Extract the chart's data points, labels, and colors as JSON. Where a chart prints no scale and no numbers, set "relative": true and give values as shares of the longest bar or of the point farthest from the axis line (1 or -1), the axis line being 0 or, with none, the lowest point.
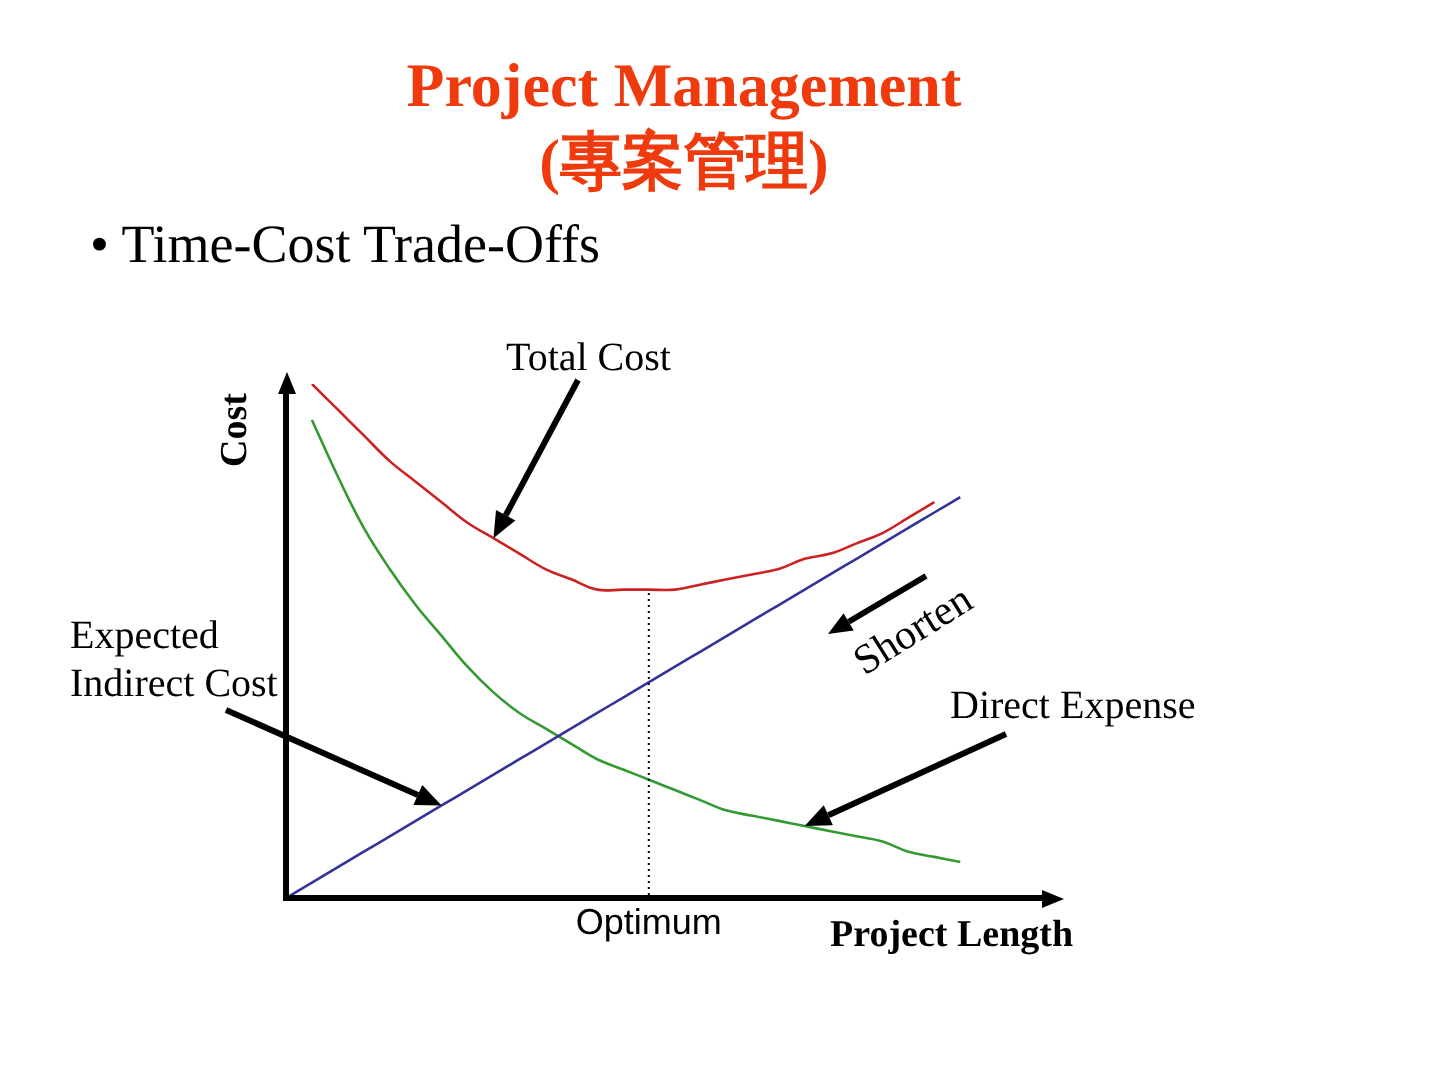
{
  "chart_data": {
    "type": "line",
    "title": "Project Management (專案管理)",
    "subtitle": "• Time-Cost Trade-Offs",
    "xlabel": "Project Length",
    "ylabel": "Cost",
    "relative": true,
    "categories": [
      null,
      null,
      null,
      null,
      null,
      null,
      null,
      null,
      null,
      null,
      null,
      null,
      null,
      null,
      null,
      null,
      null,
      null,
      null,
      null,
      null,
      null,
      null,
      null,
      null,
      null,
      null,
      null,
      null,
      null,
      null
    ],
    "series": [
      {
        "name": "Total Cost",
        "color": "#cc2222",
        "values": [
          null,
          1,
          0.95,
          0.9,
          0.85,
          0.81,
          0.77,
          0.73,
          0.7,
          0.67,
          0.64,
          0.62,
          0.6,
          0.6,
          0.6,
          0.6,
          0.61,
          0.62,
          0.63,
          0.64,
          0.66,
          0.67,
          0.69,
          0.71,
          0.74,
          0.77,
          null,
          null,
          null,
          null,
          null
        ]
      },
      {
        "name": "Expected Indirect Cost",
        "color": "#333399",
        "values": [
          0,
          0.03,
          0.06,
          0.09,
          0.12,
          0.15,
          0.18,
          0.21,
          0.24,
          0.27,
          0.3,
          0.33,
          0.36,
          0.39,
          0.42,
          0.45,
          0.48,
          0.51,
          0.54,
          0.57,
          0.6,
          0.63,
          0.66,
          0.69,
          0.72,
          0.75,
          0.78,
          null,
          null,
          null,
          null
        ]
      },
      {
        "name": "Direct Expense",
        "color": "#339933",
        "values": [
          null,
          0.93,
          0.82,
          0.72,
          0.64,
          0.57,
          0.51,
          0.45,
          0.4,
          0.36,
          0.33,
          0.3,
          0.27,
          0.25,
          0.23,
          0.21,
          0.19,
          0.17,
          0.16,
          0.15,
          0.14,
          0.13,
          0.12,
          0.11,
          0.09,
          0.08,
          0.07,
          null,
          null,
          null,
          null
        ]
      }
    ],
    "annotations": [
      "Shorten",
      "Optimum"
    ]
  }
}
